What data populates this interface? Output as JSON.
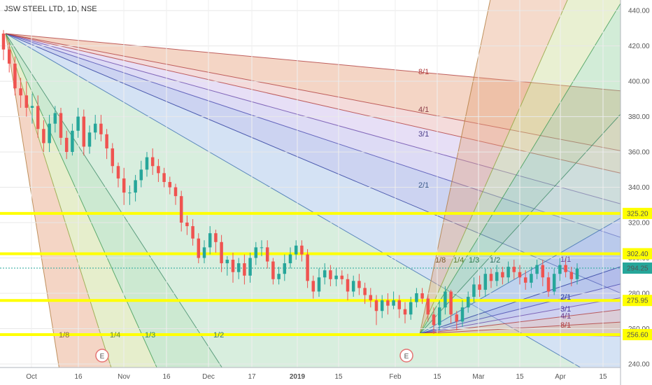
{
  "chart_data": {
    "type": "candlestick",
    "title": "JSW STEEL LTD, 1D, NSE",
    "y_ticks": [
      240,
      260,
      280,
      300,
      320,
      340,
      360,
      380,
      400,
      420,
      440
    ],
    "ylim": [
      238,
      446
    ],
    "x_ticks": [
      "Oct",
      "16",
      "Nov",
      "16",
      "Dec",
      "17",
      "2019",
      "15",
      "Feb",
      "15",
      "Mar",
      "15",
      "Apr",
      "15"
    ],
    "horizontal_levels": [
      325.2,
      302.4,
      275.95,
      256.6
    ],
    "level_color": "#ffff00",
    "current_price": 294.25,
    "current_price_color": "#26a69a",
    "up_color": "#26a69a",
    "down_color": "#ef5350",
    "event_markers": [
      "E",
      "E"
    ],
    "gann_fan_top": {
      "anchor_price": 427,
      "labels": [
        "8/1",
        "4/1",
        "3/1",
        "2/1",
        "1/8",
        "1/4",
        "1/3",
        "1/2"
      ]
    },
    "gann_fan_bottom": {
      "anchor_price": 257,
      "labels": [
        "1/8",
        "1/4",
        "1/3",
        "1/2",
        "1/1",
        "2/1",
        "3/1",
        "4/1",
        "8/1"
      ]
    },
    "candles": [
      [
        427,
        418,
        429,
        412
      ],
      [
        418,
        410,
        422,
        405
      ],
      [
        410,
        396,
        414,
        392
      ],
      [
        396,
        392,
        402,
        385
      ],
      [
        392,
        385,
        400,
        380
      ],
      [
        385,
        386,
        393,
        376
      ],
      [
        386,
        373,
        392,
        368
      ],
      [
        373,
        365,
        378,
        360
      ],
      [
        365,
        376,
        381,
        360
      ],
      [
        376,
        382,
        386,
        371
      ],
      [
        382,
        368,
        385,
        364
      ],
      [
        368,
        360,
        372,
        356
      ],
      [
        360,
        372,
        376,
        358
      ],
      [
        372,
        380,
        385,
        368
      ],
      [
        380,
        363,
        384,
        358
      ],
      [
        363,
        371,
        375,
        359
      ],
      [
        371,
        376,
        381,
        367
      ],
      [
        376,
        370,
        381,
        366
      ],
      [
        370,
        362,
        373,
        356
      ],
      [
        362,
        352,
        365,
        348
      ],
      [
        352,
        345,
        354,
        340
      ],
      [
        345,
        337,
        351,
        330
      ],
      [
        337,
        337,
        341,
        330
      ],
      [
        337,
        344,
        347,
        332
      ],
      [
        344,
        350,
        355,
        340
      ],
      [
        350,
        357,
        360,
        346
      ],
      [
        357,
        352,
        362,
        347
      ],
      [
        352,
        348,
        356,
        343
      ],
      [
        348,
        343,
        351,
        340
      ],
      [
        343,
        340,
        346,
        336
      ],
      [
        340,
        335,
        342,
        330
      ],
      [
        335,
        320,
        338,
        315
      ],
      [
        320,
        318,
        324,
        313
      ],
      [
        318,
        311,
        322,
        307
      ],
      [
        311,
        300,
        314,
        297
      ],
      [
        300,
        306,
        310,
        297
      ],
      [
        306,
        314,
        318,
        302
      ],
      [
        314,
        309,
        316,
        303
      ],
      [
        309,
        297,
        313,
        292
      ],
      [
        297,
        299,
        301,
        290
      ],
      [
        299,
        292,
        303,
        286
      ],
      [
        292,
        297,
        300,
        288
      ],
      [
        297,
        290,
        302,
        285
      ],
      [
        290,
        300,
        303,
        286
      ],
      [
        300,
        306,
        309,
        296
      ],
      [
        306,
        306,
        310,
        301
      ],
      [
        306,
        298,
        310,
        294
      ],
      [
        298,
        288,
        300,
        285
      ],
      [
        288,
        291,
        295,
        285
      ],
      [
        291,
        297,
        302,
        287
      ],
      [
        297,
        302,
        306,
        294
      ],
      [
        302,
        307,
        310,
        299
      ],
      [
        307,
        302,
        310,
        298
      ],
      [
        302,
        287,
        305,
        283
      ],
      [
        287,
        281,
        290,
        277
      ],
      [
        281,
        289,
        294,
        278
      ],
      [
        289,
        293,
        297,
        285
      ],
      [
        293,
        288,
        296,
        284
      ],
      [
        288,
        290,
        294,
        284
      ],
      [
        290,
        288,
        293,
        285
      ],
      [
        288,
        281,
        291,
        276
      ],
      [
        281,
        287,
        290,
        278
      ],
      [
        287,
        283,
        291,
        279
      ],
      [
        283,
        279,
        286,
        274
      ],
      [
        279,
        276,
        283,
        272
      ],
      [
        276,
        270,
        279,
        262
      ],
      [
        270,
        276,
        279,
        266
      ],
      [
        276,
        273,
        280,
        268
      ],
      [
        273,
        276,
        281,
        271
      ],
      [
        276,
        271,
        279,
        266
      ],
      [
        271,
        268,
        275,
        263
      ],
      [
        268,
        275,
        278,
        265
      ],
      [
        275,
        280,
        283,
        272
      ],
      [
        280,
        277,
        283,
        274
      ],
      [
        277,
        268,
        279,
        264
      ],
      [
        268,
        262,
        272,
        257
      ],
      [
        262,
        272,
        276,
        259
      ],
      [
        272,
        281,
        284,
        268
      ],
      [
        281,
        268,
        282,
        263
      ],
      [
        268,
        264,
        270,
        259
      ],
      [
        264,
        272,
        276,
        261
      ],
      [
        272,
        278,
        281,
        269
      ],
      [
        278,
        285,
        289,
        275
      ],
      [
        285,
        282,
        290,
        278
      ],
      [
        282,
        291,
        294,
        278
      ],
      [
        291,
        287,
        294,
        283
      ],
      [
        287,
        292,
        296,
        284
      ],
      [
        292,
        289,
        295,
        285
      ],
      [
        289,
        295,
        298,
        286
      ],
      [
        295,
        292,
        299,
        288
      ],
      [
        292,
        289,
        296,
        285
      ],
      [
        289,
        286,
        293,
        282
      ],
      [
        286,
        291,
        295,
        283
      ],
      [
        291,
        296,
        299,
        288
      ],
      [
        296,
        289,
        299,
        284
      ],
      [
        289,
        281,
        292,
        278
      ],
      [
        281,
        291,
        294,
        279
      ],
      [
        291,
        296,
        300,
        287
      ],
      [
        296,
        292,
        300,
        289
      ],
      [
        292,
        288,
        295,
        284
      ],
      [
        288,
        294,
        297,
        285
      ]
    ]
  }
}
